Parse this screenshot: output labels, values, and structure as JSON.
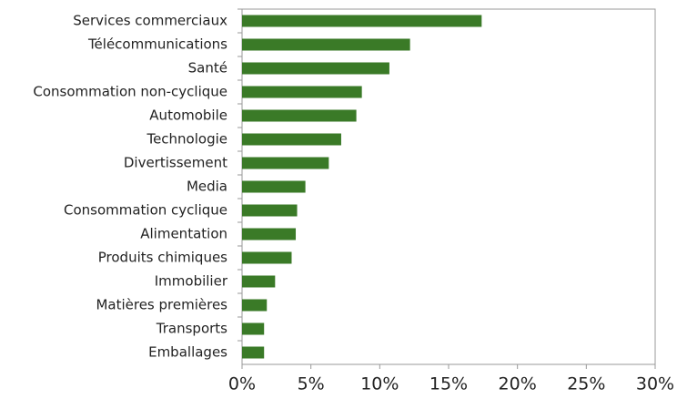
{
  "chart_data": {
    "type": "bar",
    "orientation": "horizontal",
    "categories": [
      "Services commerciaux",
      "Télécommunications",
      "Santé",
      "Consommation non-cyclique",
      "Automobile",
      "Technologie",
      "Divertissement",
      "Media",
      "Consommation cyclique",
      "Alimentation",
      "Produits chimiques",
      "Immobilier",
      "Matières premières",
      "Transports",
      "Emballages"
    ],
    "values": [
      17.4,
      12.2,
      10.7,
      8.7,
      8.3,
      7.2,
      6.3,
      4.6,
      4.0,
      3.9,
      3.6,
      2.4,
      1.8,
      1.6,
      1.6
    ],
    "color": "#3a7a27",
    "xlim": [
      0,
      30
    ],
    "xticks": [
      {
        "value": 0,
        "label": "0%"
      },
      {
        "value": 5,
        "label": "5%"
      },
      {
        "value": 10,
        "label": "10%"
      },
      {
        "value": 15,
        "label": "15%"
      },
      {
        "value": 20,
        "label": "20%"
      },
      {
        "value": 25,
        "label": "25%"
      },
      {
        "value": 30,
        "label": "30%"
      }
    ],
    "grid": false
  }
}
